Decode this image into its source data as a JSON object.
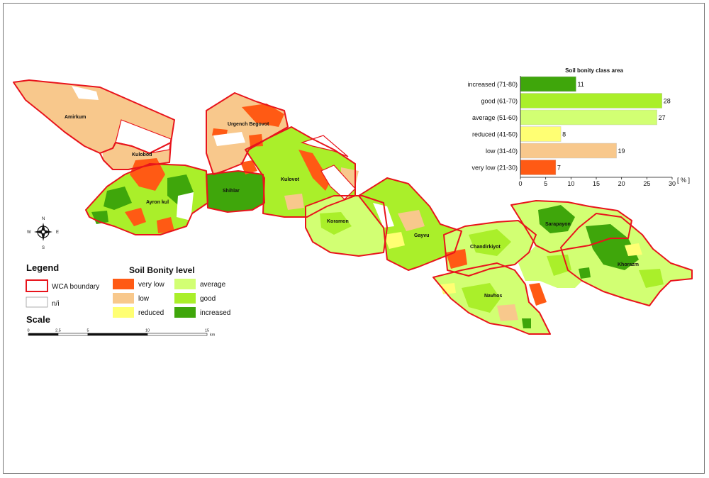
{
  "colors": {
    "very_low": "#ff5a14",
    "low": "#f8c88c",
    "reduced": "#ffff73",
    "average": "#d2ff73",
    "good": "#aaef2a",
    "increased": "#3fa60b",
    "boundary": "#e8141c",
    "ni": "#ffffff"
  },
  "districts": [
    {
      "key": "amirkum",
      "label": "Amirkum"
    },
    {
      "key": "kulobod",
      "label": "Kulobod"
    },
    {
      "key": "urgench",
      "label": "Urgench Begovot"
    },
    {
      "key": "kulovot",
      "label": "Kulovot"
    },
    {
      "key": "shihlar",
      "label": "Shihlar"
    },
    {
      "key": "ayronkul",
      "label": "Ayron kul"
    },
    {
      "key": "koramon",
      "label": "Koramon"
    },
    {
      "key": "gayvu",
      "label": "Gayvu"
    },
    {
      "key": "chandirkiyot",
      "label": "Chandirkiyot"
    },
    {
      "key": "sarapayon",
      "label": "Sarapayon"
    },
    {
      "key": "khorazm",
      "label": "Khorazm"
    },
    {
      "key": "navhos",
      "label": "Navhos"
    }
  ],
  "compass": {
    "n": "N",
    "s": "S",
    "e": "E",
    "w": "W"
  },
  "legend": {
    "title": "Legend",
    "wca_boundary": "WCA boundary",
    "ni": "n/i",
    "bonity_title": "Soil Bonity level",
    "items": [
      {
        "key": "very_low",
        "label": "very low"
      },
      {
        "key": "low",
        "label": "low"
      },
      {
        "key": "reduced",
        "label": "reduced"
      },
      {
        "key": "average",
        "label": "average"
      },
      {
        "key": "good",
        "label": "good"
      },
      {
        "key": "increased",
        "label": "increased"
      }
    ]
  },
  "scale": {
    "title": "Scale",
    "ticks": [
      "0",
      "2.5",
      "5",
      "10",
      "15"
    ],
    "tick_km": [
      0,
      2.5,
      5,
      10,
      15
    ],
    "unit": "km"
  },
  "chart_data": {
    "type": "bar",
    "orientation": "horizontal",
    "title": "Soil bonity class area",
    "categories": [
      "increased (71-80)",
      "good (61-70)",
      "average (51-60)",
      "reduced (41-50)",
      "low (31-40)",
      "very low (21-30)"
    ],
    "values": [
      11,
      28,
      27,
      8,
      19,
      7
    ],
    "color_keys": [
      "increased",
      "good",
      "average",
      "reduced",
      "low",
      "very_low"
    ],
    "xlabel": "[ % ]",
    "xlim": [
      0,
      30
    ],
    "xticks": [
      0,
      5,
      10,
      15,
      20,
      25,
      30
    ],
    "grid": false,
    "data_labels": true
  }
}
